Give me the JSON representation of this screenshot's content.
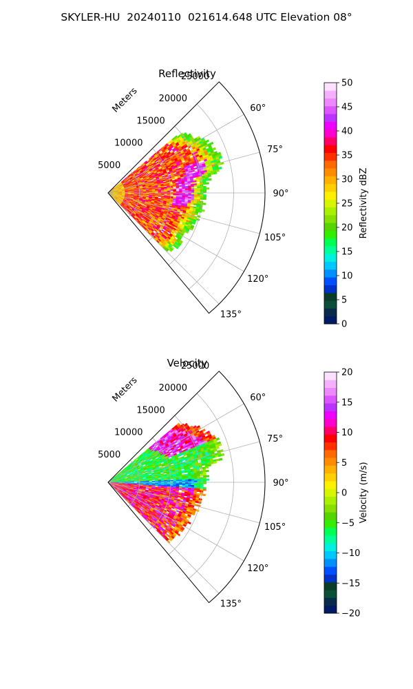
{
  "title": "SKYLER-HU  20240110  021614.648 UTC Elevation 08°",
  "chart_data": [
    {
      "type": "heatmap",
      "subtype": "polar-sector (PPI radar)",
      "title": "Reflectivity",
      "range_label": "Meters",
      "range_ticks": [
        5000,
        10000,
        15000,
        20000,
        25000
      ],
      "range_max": 25000,
      "azimuth_ticks": [
        "60°",
        "75°",
        "90°",
        "105°",
        "120°",
        "135°"
      ],
      "azimuth_values": [
        60,
        75,
        90,
        105,
        120,
        135
      ],
      "sector_deg": [
        45,
        140
      ],
      "grid": true,
      "colorbar": {
        "label": "Reflectivity dBZ",
        "min": 0,
        "max": 50,
        "ticks": [
          "0",
          "5",
          "10",
          "15",
          "20",
          "25",
          "30",
          "35",
          "40",
          "45",
          "50"
        ],
        "colors": [
          "#001a66",
          "#0a2a4a",
          "#0b4f3a",
          "#0a3c28",
          "#0032c8",
          "#0050ff",
          "#0090ff",
          "#00c8ff",
          "#00f0e0",
          "#00ff99",
          "#00ff55",
          "#33ee00",
          "#55d400",
          "#88e000",
          "#aaf000",
          "#d8f500",
          "#fff000",
          "#ffd000",
          "#ffb000",
          "#ff8c00",
          "#ff6a00",
          "#ff3000",
          "#ff0000",
          "#ff0066",
          "#ff00cc",
          "#ee00ff",
          "#bb33ff",
          "#dd55ff",
          "#ee88ff",
          "#f5b0ff",
          "#fbe0ff"
        ]
      },
      "echo_sector": {
        "az_start": 50,
        "az_end": 135,
        "range_start": 0,
        "range_end": 19000,
        "dominant_values": "20-45 dBZ (core 35-45)"
      }
    },
    {
      "type": "heatmap",
      "subtype": "polar-sector (PPI radar)",
      "title": "Velocity",
      "range_label": "Meters",
      "range_ticks": [
        5000,
        10000,
        15000,
        20000,
        25000
      ],
      "range_max": 25000,
      "azimuth_ticks": [
        "60°",
        "75°",
        "90°",
        "105°",
        "120°",
        "135°"
      ],
      "azimuth_values": [
        60,
        75,
        90,
        105,
        120,
        135
      ],
      "sector_deg": [
        45,
        140
      ],
      "grid": true,
      "colorbar": {
        "label": "Velocity (m/s)",
        "min": -20,
        "max": 20,
        "ticks": [
          "−20",
          "−15",
          "−10",
          "−5",
          "0",
          "5",
          "10",
          "15",
          "20"
        ],
        "colors": [
          "#001a66",
          "#0a2a4a",
          "#0b4f3a",
          "#0a3c28",
          "#0032c8",
          "#0050ff",
          "#0090ff",
          "#00c8ff",
          "#00f0e0",
          "#00ff99",
          "#00ff55",
          "#33ee00",
          "#55d400",
          "#88e000",
          "#aaf000",
          "#d8f500",
          "#fff000",
          "#ffd000",
          "#ffb000",
          "#ff8c00",
          "#ff6a00",
          "#ff3000",
          "#ff0000",
          "#ff0066",
          "#ff00cc",
          "#ee00ff",
          "#bb33ff",
          "#dd55ff",
          "#ee88ff",
          "#f5b0ff",
          "#fbe0ff"
        ]
      },
      "echo_sector": {
        "az_start": 50,
        "az_end": 135,
        "range_start": 0,
        "range_end": 19000,
        "dominant_values": "-10 to -2 m/s north of 90°, +5 to +15 m/s south of 90°"
      }
    }
  ]
}
